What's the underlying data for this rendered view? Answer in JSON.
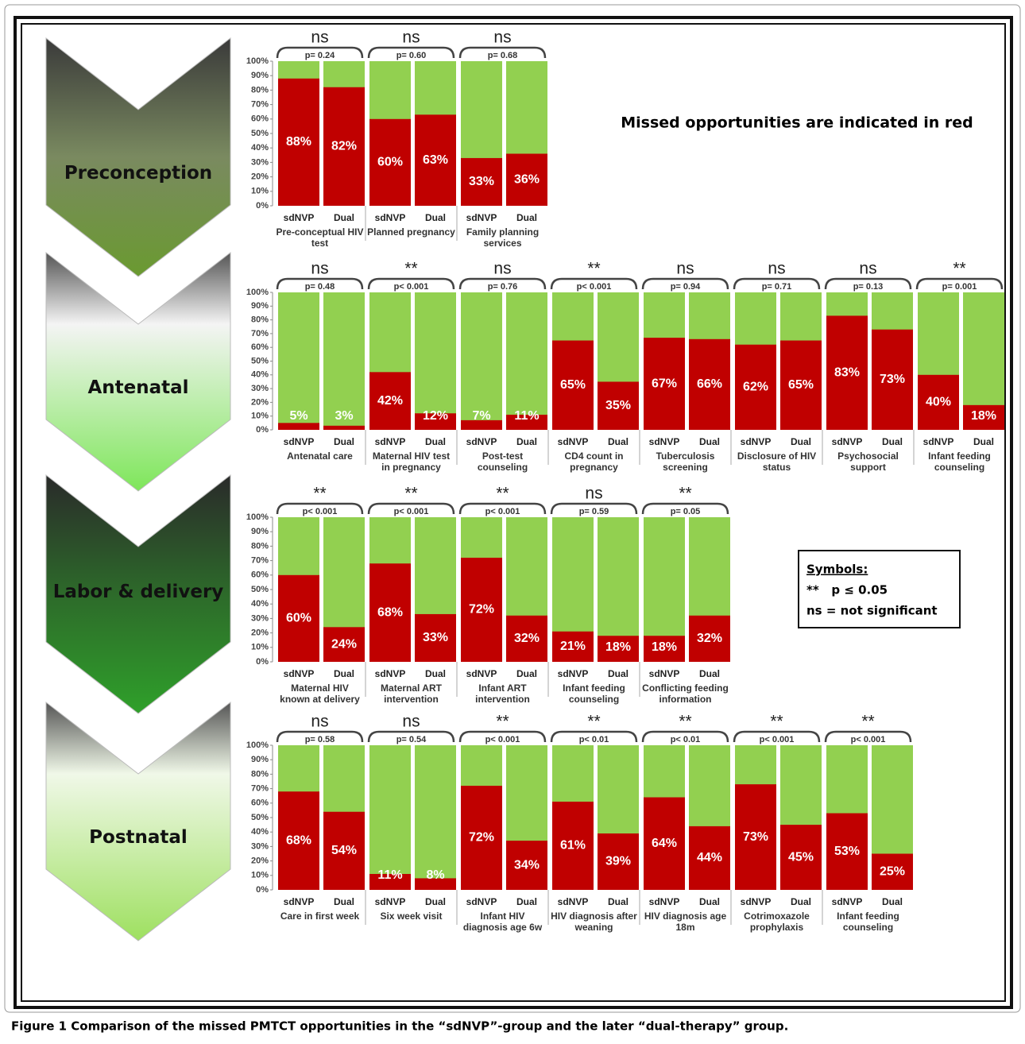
{
  "chart_data": [
    {
      "type": "bar",
      "stage": "Preconception",
      "color": "#c00000",
      "background_color": "#92d050",
      "ylim": [
        0,
        100
      ],
      "yticks": [
        {
          "value": 0,
          "label": "0%"
        },
        {
          "value": 10,
          "label": "10%"
        },
        {
          "value": 20,
          "label": "20%"
        },
        {
          "value": 30,
          "label": "30%"
        },
        {
          "value": 40,
          "label": "40%"
        },
        {
          "value": 50,
          "label": "50%"
        },
        {
          "value": 60,
          "label": "60%"
        },
        {
          "value": 70,
          "label": "70%"
        },
        {
          "value": 80,
          "label": "80%"
        },
        {
          "value": 90,
          "label": "90%"
        },
        {
          "value": 100,
          "label": "100%"
        }
      ],
      "series_names": [
        "sdNVP",
        "Dual"
      ],
      "groups": [
        {
          "category": "Pre-conceptual HIV test",
          "significance": "ns",
          "p_value": "p= 0.24",
          "values": [
            88,
            82
          ],
          "value_labels": [
            "88%",
            "82%"
          ]
        },
        {
          "category": "Planned pregnancy",
          "significance": "ns",
          "p_value": "p= 0.60",
          "values": [
            60,
            63
          ],
          "value_labels": [
            "60%",
            "63%"
          ]
        },
        {
          "category": "Family planning services",
          "significance": "ns",
          "p_value": "p= 0.68",
          "values": [
            33,
            36
          ],
          "value_labels": [
            "33%",
            "36%"
          ]
        }
      ]
    },
    {
      "type": "bar",
      "stage": "Antenatal",
      "color": "#c00000",
      "background_color": "#92d050",
      "ylim": [
        0,
        100
      ],
      "yticks": [
        {
          "value": 0,
          "label": "0%"
        },
        {
          "value": 10,
          "label": "10%"
        },
        {
          "value": 20,
          "label": "20%"
        },
        {
          "value": 30,
          "label": "30%"
        },
        {
          "value": 40,
          "label": "40%"
        },
        {
          "value": 50,
          "label": "50%"
        },
        {
          "value": 60,
          "label": "60%"
        },
        {
          "value": 70,
          "label": "70%"
        },
        {
          "value": 80,
          "label": "80%"
        },
        {
          "value": 90,
          "label": "90%"
        },
        {
          "value": 100,
          "label": "100%"
        }
      ],
      "series_names": [
        "sdNVP",
        "Dual"
      ],
      "groups": [
        {
          "category": "Antenatal care",
          "significance": "ns",
          "p_value": "p= 0.48",
          "values": [
            5,
            3
          ],
          "value_labels": [
            "5%",
            "3%"
          ]
        },
        {
          "category": "Maternal HIV test in pregnancy",
          "significance": "**",
          "p_value": "p< 0.001",
          "values": [
            42,
            12
          ],
          "value_labels": [
            "42%",
            "12%"
          ]
        },
        {
          "category": "Post-test counseling",
          "significance": "ns",
          "p_value": "p= 0.76",
          "values": [
            7,
            11
          ],
          "value_labels": [
            "7%",
            "11%"
          ]
        },
        {
          "category": "CD4 count in pregnancy",
          "significance": "**",
          "p_value": "p< 0.001",
          "values": [
            65,
            35
          ],
          "value_labels": [
            "65%",
            "35%"
          ]
        },
        {
          "category": "Tuberculosis screening",
          "significance": "ns",
          "p_value": "p= 0.94",
          "values": [
            67,
            66
          ],
          "value_labels": [
            "67%",
            "66%"
          ]
        },
        {
          "category": "Disclosure of HIV status",
          "significance": "ns",
          "p_value": "p= 0.71",
          "values": [
            62,
            65
          ],
          "value_labels": [
            "62%",
            "65%"
          ]
        },
        {
          "category": "Psychosocial support",
          "significance": "ns",
          "p_value": "p= 0.13",
          "values": [
            83,
            73
          ],
          "value_labels": [
            "83%",
            "73%"
          ]
        },
        {
          "category": "Infant feeding counseling",
          "significance": "**",
          "p_value": "p= 0.001",
          "values": [
            40,
            18
          ],
          "value_labels": [
            "40%",
            "18%"
          ]
        }
      ]
    },
    {
      "type": "bar",
      "stage": "Labor & delivery",
      "color": "#c00000",
      "background_color": "#92d050",
      "ylim": [
        0,
        100
      ],
      "yticks": [
        {
          "value": 0,
          "label": "0%"
        },
        {
          "value": 10,
          "label": "10%"
        },
        {
          "value": 20,
          "label": "20%"
        },
        {
          "value": 30,
          "label": "30%"
        },
        {
          "value": 40,
          "label": "40%"
        },
        {
          "value": 50,
          "label": "50%"
        },
        {
          "value": 60,
          "label": "60%"
        },
        {
          "value": 70,
          "label": "70%"
        },
        {
          "value": 80,
          "label": "80%"
        },
        {
          "value": 90,
          "label": "90%"
        },
        {
          "value": 100,
          "label": "100%"
        }
      ],
      "series_names": [
        "sdNVP",
        "Dual"
      ],
      "groups": [
        {
          "category": "Maternal HIV known at delivery",
          "significance": "**",
          "p_value": "p< 0.001",
          "values": [
            60,
            24
          ],
          "value_labels": [
            "60%",
            "24%"
          ]
        },
        {
          "category": "Maternal ART intervention",
          "significance": "**",
          "p_value": "p< 0.001",
          "values": [
            68,
            33
          ],
          "value_labels": [
            "68%",
            "33%"
          ]
        },
        {
          "category": "Infant ART intervention",
          "significance": "**",
          "p_value": "p< 0.001",
          "values": [
            72,
            32
          ],
          "value_labels": [
            "72%",
            "32%"
          ]
        },
        {
          "category": "Infant feeding counseling",
          "significance": "ns",
          "p_value": "p= 0.59",
          "values": [
            21,
            18
          ],
          "value_labels": [
            "21%",
            "18%"
          ]
        },
        {
          "category": "Conflicting feeding information",
          "significance": "**",
          "p_value": "p= 0.05",
          "values": [
            18,
            32
          ],
          "value_labels": [
            "18%",
            "32%"
          ]
        }
      ]
    },
    {
      "type": "bar",
      "stage": "Postnatal",
      "color": "#c00000",
      "background_color": "#92d050",
      "ylim": [
        0,
        100
      ],
      "yticks": [
        {
          "value": 0,
          "label": "0%"
        },
        {
          "value": 10,
          "label": "10%"
        },
        {
          "value": 20,
          "label": "20%"
        },
        {
          "value": 30,
          "label": "30%"
        },
        {
          "value": 40,
          "label": "40%"
        },
        {
          "value": 50,
          "label": "50%"
        },
        {
          "value": 60,
          "label": "60%"
        },
        {
          "value": 70,
          "label": "70%"
        },
        {
          "value": 80,
          "label": "80%"
        },
        {
          "value": 90,
          "label": "90%"
        },
        {
          "value": 100,
          "label": "100%"
        }
      ],
      "series_names": [
        "sdNVP",
        "Dual"
      ],
      "groups": [
        {
          "category": "Care in first week",
          "significance": "ns",
          "p_value": "p= 0.58",
          "values": [
            68,
            54
          ],
          "value_labels": [
            "68%",
            "54%"
          ]
        },
        {
          "category": "Six week visit",
          "significance": "ns",
          "p_value": "p= 0.54",
          "values": [
            11,
            8
          ],
          "value_labels": [
            "11%",
            "8%"
          ]
        },
        {
          "category": "Infant HIV diagnosis age 6w",
          "significance": "**",
          "p_value": "p< 0.001",
          "values": [
            72,
            34
          ],
          "value_labels": [
            "72%",
            "34%"
          ]
        },
        {
          "category": "HIV diagnosis after weaning",
          "significance": "**",
          "p_value": "p< 0.01",
          "values": [
            61,
            39
          ],
          "value_labels": [
            "61%",
            "39%"
          ]
        },
        {
          "category": "HIV diagnosis age 18m",
          "significance": "**",
          "p_value": "p< 0.01",
          "values": [
            64,
            44
          ],
          "value_labels": [
            "64%",
            "44%"
          ]
        },
        {
          "category": "Cotrimoxazole prophylaxis",
          "significance": "**",
          "p_value": "p< 0.001",
          "values": [
            73,
            45
          ],
          "value_labels": [
            "73%",
            "45%"
          ]
        },
        {
          "category": "Infant feeding counseling",
          "significance": "**",
          "p_value": "p< 0.001",
          "values": [
            53,
            25
          ],
          "value_labels": [
            "53%",
            "25%"
          ]
        }
      ]
    }
  ],
  "note": "Missed opportunities are indicated in red",
  "legend": {
    "title": "Symbols:",
    "items": [
      "**   p ≤ 0.05",
      "ns = not significant"
    ]
  },
  "caption": "Figure 1 Comparison of the missed PMTCT opportunities in the “sdNVP”-group and the later “dual-therapy” group."
}
